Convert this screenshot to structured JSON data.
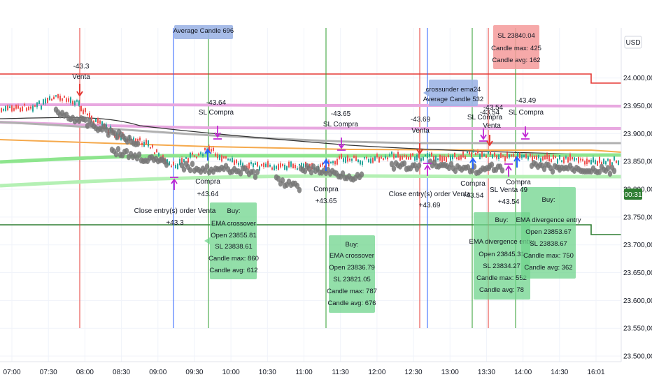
{
  "currency": "USD",
  "countdown": "00:31",
  "colors": {
    "up": "#26a69a",
    "down": "#ef5350",
    "buy_box": "#6fd48c",
    "sell_box": "#f59a9a",
    "info_box": "#9db5e6",
    "entry_line": "#2962ff",
    "compra_line": "#2e9e2e",
    "venta_line": "#e53935",
    "resistance": "#e53935",
    "support": "#2e7d32"
  },
  "chart_data": {
    "type": "candlestick",
    "ylim": [
      23490,
      24090
    ],
    "y_ticks": [
      "24.000,00",
      "23.950,00",
      "23.900,00",
      "23.850,00",
      "23.800,00",
      "23.750,00",
      "23.700,00",
      "23.650,00",
      "23.600,00",
      "23.550,00",
      "23.500,00"
    ],
    "y_tick_values": [
      24000,
      23950,
      23900,
      23850,
      23800,
      23750,
      23700,
      23650,
      23600,
      23550,
      23500
    ],
    "x_ticks": [
      "07:00",
      "07:30",
      "08:00",
      "08:30",
      "09:00",
      "09:30",
      "10:00",
      "10:30",
      "11:00",
      "11:30",
      "12:00",
      "12:30",
      "13:00",
      "13:30",
      "14:00",
      "14:30",
      "16:01"
    ],
    "current_price_label": "00:31",
    "resistance_level": 24005,
    "support_level": 23715
  },
  "annotations": {
    "venta_top": {
      "value": "-43.3",
      "label": "Venta"
    },
    "sl_compra_1": {
      "value": "-43.64",
      "label": "SL Compra"
    },
    "sl_compra_2": {
      "value": "-43.65",
      "label": "SL Compra"
    },
    "venta_2": {
      "value": "-43.69",
      "label": "Venta"
    },
    "sl_compra_3": {
      "value": "-43.54",
      "label": "SL Compra"
    },
    "venta_3": {
      "value": "-43.54",
      "label": "Venta"
    },
    "sl_compra_4": {
      "value": "-43.49",
      "label": "SL Compra"
    },
    "close_entry_1": {
      "label": "Close entry(s) order Venta",
      "value": "+43.3"
    },
    "compra_1": {
      "label": "Compra",
      "value": "+43.64"
    },
    "compra_2": {
      "label": "Compra",
      "value": "+43.65"
    },
    "close_entry_2": {
      "label": "Close entry(s) order Venta",
      "value": "+43.69"
    },
    "compra_3": {
      "label": "Compra",
      "value": "+43.54"
    },
    "compra_4": {
      "label": "Compra",
      "value": ""
    },
    "sl_venta": {
      "label": "SL Venta 49",
      "value": "+43.54"
    },
    "info_avg_top": "Average Candle 696",
    "info_crossunder": [
      "crossunder ema24",
      "Average Candle 532"
    ],
    "sell_box": [
      "SL 23840.04",
      "Candle max: 425",
      "Candle avg: 162"
    ],
    "buy_box_1": [
      "Buy:",
      "EMA crossover",
      "Open 23855.81",
      "SL 23838.61",
      "Candle max: 860",
      "Candle avg: 612"
    ],
    "buy_box_2": [
      "Buy:",
      "EMA crossover",
      "Open 23836.79",
      "SL 23821.05",
      "Candle max: 787",
      "Candle avg: 676"
    ],
    "buy_box_3": [
      "Buy:",
      "EMA divergence entry",
      "Open 23845.31",
      "SL 23834.27",
      "Candle max: 552",
      "Candle avg: 78"
    ],
    "buy_box_4": [
      "Buy:",
      "EMA divergence entry",
      "Open 23853.67",
      "SL 23838.67",
      "Candle max: 750",
      "Candle avg: 362"
    ]
  }
}
